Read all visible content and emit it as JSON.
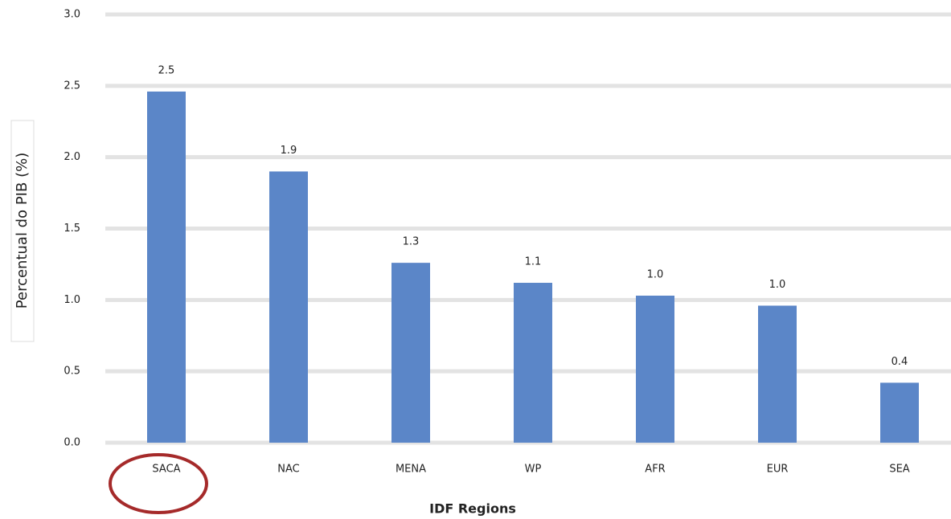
{
  "chart_data": {
    "type": "bar",
    "x_label": "IDF Regions",
    "y_label": "Percentual do PIB (%)",
    "categories": [
      "SACA",
      "NAC",
      "MENA",
      "WP",
      "AFR",
      "EUR",
      "SEA"
    ],
    "values": [
      2.46,
      1.9,
      1.26,
      1.12,
      1.03,
      0.96,
      0.42
    ],
    "value_labels": [
      "2.5",
      "1.9",
      "1.3",
      "1.1",
      "1.0",
      "1.0",
      "0.4"
    ],
    "color": "#5b86c8",
    "ylim": [
      0,
      3
    ],
    "yticks": [
      {
        "value": 0,
        "label": "0.0"
      },
      0.5,
      {
        "value": 1,
        "label": "1.0"
      },
      1.5,
      {
        "value": 2,
        "label": "2.0"
      },
      2.5,
      {
        "value": 3,
        "label": "3.0"
      }
    ],
    "grid": true
  }
}
